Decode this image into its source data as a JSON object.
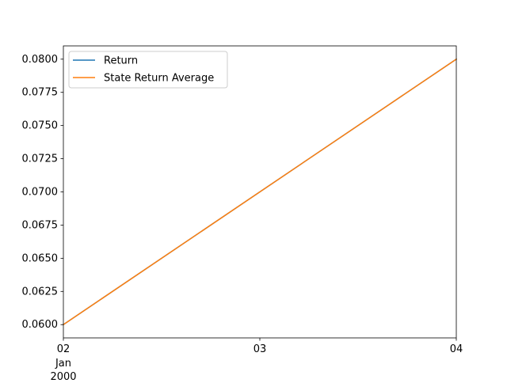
{
  "chart_data": {
    "type": "line",
    "title": "",
    "xlabel": "",
    "ylabel": "",
    "x": [
      "2000-01-02",
      "2000-01-03",
      "2000-01-04"
    ],
    "x_tick_labels": [
      {
        "x": "2000-01-02",
        "major": "02",
        "minor": "Jan",
        "year": "2000"
      },
      {
        "x": "2000-01-03",
        "major": "03"
      },
      {
        "x": "2000-01-04",
        "major": "04"
      }
    ],
    "xlim": [
      "2000-01-02",
      "2000-01-04"
    ],
    "ylim": [
      0.059,
      0.081
    ],
    "y_ticks": [
      0.06,
      0.0625,
      0.065,
      0.0675,
      0.07,
      0.0725,
      0.075,
      0.0775,
      0.08
    ],
    "y_tick_labels": [
      "0.0600",
      "0.0625",
      "0.0650",
      "0.0675",
      "0.0700",
      "0.0725",
      "0.0750",
      "0.0775",
      "0.0800"
    ],
    "series": [
      {
        "name": "Return",
        "color": "#1f77b4",
        "values": [
          0.06,
          0.07,
          0.08
        ]
      },
      {
        "name": "State Return Average",
        "color": "#ff7f0e",
        "values": [
          0.06,
          0.07,
          0.08
        ]
      }
    ],
    "legend": {
      "position": "top-left"
    },
    "grid": false
  }
}
